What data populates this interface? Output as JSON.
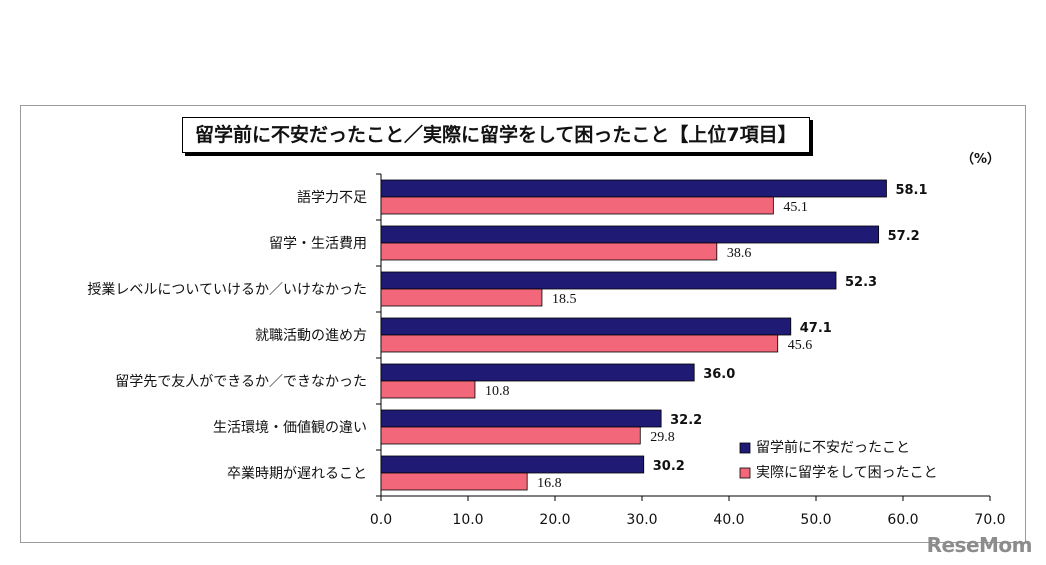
{
  "chart_data": {
    "type": "bar",
    "orientation": "horizontal",
    "title": "留学前に不安だったこと／実際に留学をして困ったこと【上位7項目】",
    "unit_label": "（%）",
    "categories": [
      "語学力不足",
      "留学・生活費用",
      "授業レベルについていけるか／いけなかった",
      "就職活動の進め方",
      "留学先で友人ができるか／できなかった",
      "生活環境・価値観の違い",
      "卒業時期が遅れること"
    ],
    "series": [
      {
        "name": "留学前に不安だったこと",
        "color": "#1f1a73",
        "values": [
          58.1,
          57.2,
          52.3,
          47.1,
          36.0,
          32.2,
          30.2
        ],
        "labels": [
          "58.1",
          "57.2",
          "52.3",
          "47.1",
          "36.0",
          "32.2",
          "30.2"
        ]
      },
      {
        "name": "実際に留学をして困ったこと",
        "color": "#f2687a",
        "values": [
          45.1,
          38.6,
          18.5,
          45.6,
          10.8,
          29.8,
          16.8
        ],
        "labels": [
          "45.1",
          "38.6",
          "18.5",
          "45.6",
          "10.8",
          "29.8",
          "16.8"
        ]
      }
    ],
    "xlim": [
      0,
      70
    ],
    "xticks": [
      "0.0",
      "10.0",
      "20.0",
      "30.0",
      "40.0",
      "50.0",
      "60.0",
      "70.0"
    ],
    "legend_position": "bottom-right",
    "grid": false
  },
  "watermark": "ReseMom"
}
